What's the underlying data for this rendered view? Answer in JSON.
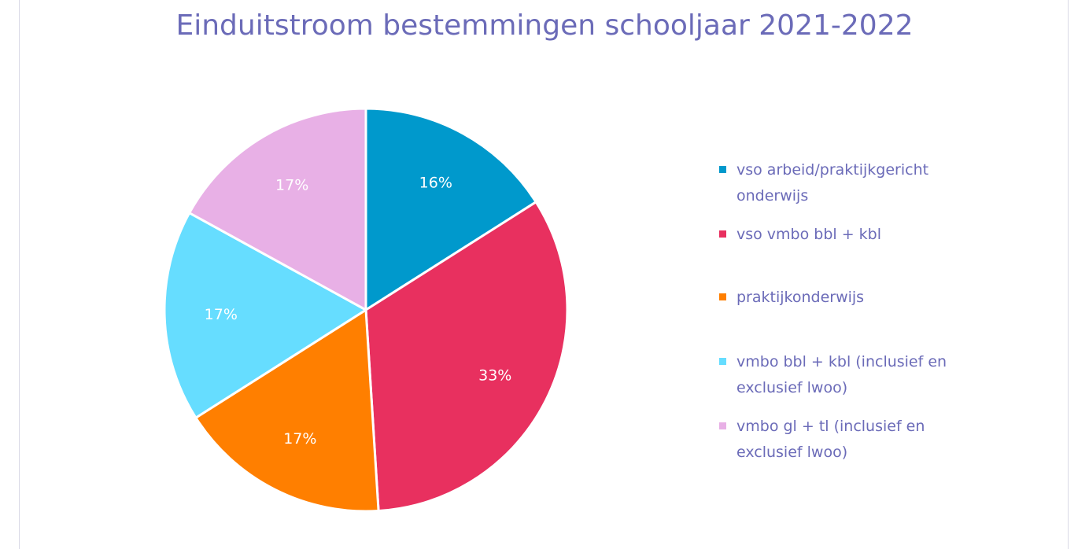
{
  "chart_data": {
    "type": "pie",
    "title": "Einduitstroom bestemmingen schooljaar 2021-2022",
    "slices": [
      {
        "label": "vso arbeid/praktijkgericht onderwijs",
        "value": 16,
        "value_label": "16%",
        "color": "#0099cc"
      },
      {
        "label": "vso vmbo bbl + kbl",
        "value": 33,
        "value_label": "33%",
        "color": "#e8305f"
      },
      {
        "label": "praktijkonderwijs",
        "value": 17,
        "value_label": "17%",
        "color": "#ff7f00"
      },
      {
        "label": "vmbo bbl + kbl (inclusief en exclusief lwoo)",
        "value": 17,
        "value_label": "17%",
        "color": "#66ddff"
      },
      {
        "label": "vmbo gl + tl (inclusief en exclusief lwoo)",
        "value": 17,
        "value_label": "17%",
        "color": "#e8b0e6"
      }
    ],
    "legend_position": "right",
    "start": "12 o'clock, clockwise"
  }
}
